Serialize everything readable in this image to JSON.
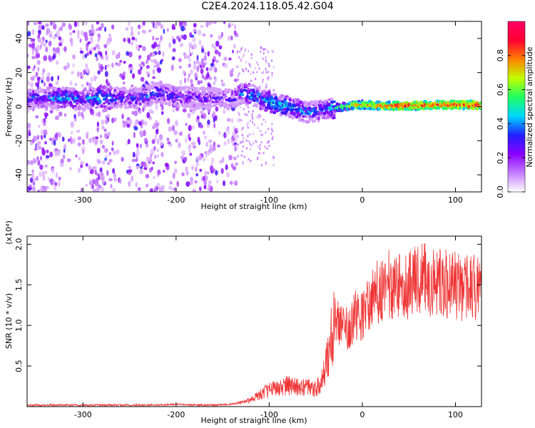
{
  "title": "C2E4.2024.118.05.42.G04",
  "chart_data": [
    {
      "type": "heatmap",
      "xlabel": "Height of straight line (km)",
      "ylabel": "Frequency (Hz)",
      "xlim": [
        -360,
        128
      ],
      "ylim": [
        -50,
        50
      ],
      "xticks": [
        -300,
        -200,
        -100,
        0,
        100
      ],
      "yticks": [
        -40,
        -20,
        0,
        20,
        40
      ],
      "xticklabels": [
        "-300",
        "-200",
        "-100",
        "0",
        "100"
      ],
      "yticklabels": [
        "-40",
        "-20",
        "0",
        "20",
        "40"
      ],
      "grid": false,
      "colorbar": {
        "label": "Normalized spectral amplitude",
        "range": [
          0.0,
          1.0
        ],
        "ticks": [
          0.0,
          0.2,
          0.4,
          0.6,
          0.8
        ],
        "ticklabels": [
          "0.0",
          "0.2",
          "0.4",
          "0.6",
          "0.8"
        ],
        "colors": [
          "#ffffff",
          "#c57dff",
          "#8a00ff",
          "#2020ff",
          "#00d8ff",
          "#20ff60",
          "#c0ff00",
          "#ff8000",
          "#ff0033",
          "#ff0066"
        ]
      },
      "ridge": {
        "x": [
          -340,
          -320,
          -300,
          -280,
          -260,
          -240,
          -220,
          -200,
          -180,
          -160,
          -140,
          -130,
          -120,
          -110,
          -100,
          -90,
          -80,
          -70,
          -60,
          -50,
          -40,
          -30,
          -20,
          -10,
          0,
          20,
          40,
          60,
          80,
          100,
          120
        ],
        "frequency": [
          5,
          5,
          4,
          6,
          5,
          5,
          8,
          6,
          5,
          5,
          4,
          8,
          7,
          5,
          3,
          1,
          0,
          -2,
          -3,
          -3,
          -2,
          -1,
          0,
          1,
          1,
          0.5,
          0.5,
          0.5,
          1,
          1,
          1
        ],
        "amplitude": [
          0.3,
          0.45,
          0.3,
          0.45,
          0.3,
          0.3,
          0.35,
          0.3,
          0.25,
          0.25,
          0.25,
          0.35,
          0.4,
          0.4,
          0.45,
          0.45,
          0.45,
          0.4,
          0.35,
          0.35,
          0.35,
          0.5,
          0.6,
          0.7,
          0.75,
          0.8,
          0.85,
          0.85,
          0.85,
          0.85,
          0.85
        ]
      }
    },
    {
      "type": "line",
      "xlabel": "Height of straight line (km)",
      "ylabel": "SNR (10 * v/v)",
      "y_multiplier": "(x10⁴)",
      "xlim": [
        -360,
        128
      ],
      "ylim": [
        0,
        2.1
      ],
      "xticks": [
        -300,
        -200,
        -100,
        0,
        100
      ],
      "yticks": [
        0.5,
        1.0,
        1.5,
        2.0
      ],
      "xticklabels": [
        "-300",
        "-200",
        "-100",
        "0",
        "100"
      ],
      "yticklabels": [
        "0.5",
        "1.0",
        "1.5",
        "2.0"
      ],
      "grid": false,
      "color": "#ee3333",
      "series": [
        {
          "x": [
            -360,
            -340,
            -320,
            -300,
            -280,
            -260,
            -240,
            -220,
            -200,
            -180,
            -160,
            -140,
            -120,
            -110,
            -100,
            -90,
            -80,
            -70,
            -60,
            -50,
            -45,
            -40,
            -35,
            -30,
            -25,
            -20,
            -15,
            -10,
            -5,
            0,
            10,
            20,
            30,
            40,
            50,
            60,
            70,
            80,
            90,
            100,
            110,
            120,
            128
          ],
          "values": [
            0.02,
            0.02,
            0.02,
            0.02,
            0.02,
            0.02,
            0.02,
            0.02,
            0.03,
            0.02,
            0.02,
            0.03,
            0.08,
            0.15,
            0.22,
            0.25,
            0.27,
            0.25,
            0.25,
            0.22,
            0.3,
            0.45,
            0.8,
            1.1,
            1.05,
            1.1,
            1.0,
            1.1,
            1.2,
            1.15,
            1.35,
            1.5,
            1.55,
            1.55,
            1.55,
            1.6,
            1.62,
            1.55,
            1.55,
            1.55,
            1.5,
            1.5,
            1.55
          ]
        }
      ]
    }
  ]
}
